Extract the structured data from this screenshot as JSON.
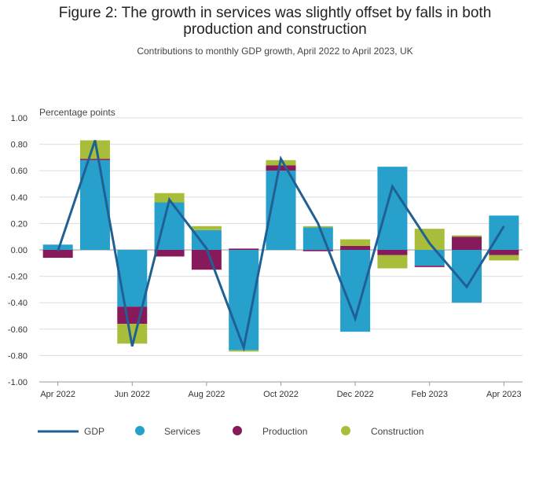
{
  "header": {
    "title_line1": "Figure 2: The growth in services was slightly offset by falls in both",
    "title_line2": "production and construction",
    "subtitle": "Contributions to monthly GDP growth, April 2022 to April 2023, UK"
  },
  "colors": {
    "services": "#27a0cc",
    "production": "#871a5b",
    "construction": "#a8bd3a",
    "gdp": "#206095",
    "grid": "#dddddd",
    "axis": "#999999"
  },
  "chart_data": {
    "type": "bar",
    "stacked": true,
    "title": "Figure 2: The growth in services was slightly offset by falls in both production and construction",
    "subtitle": "Contributions to monthly GDP growth, April 2022 to April 2023, UK",
    "ylabel": "Percentage points",
    "xlabel": "",
    "ylim": [
      -1.0,
      1.0
    ],
    "yticks": [
      1.0,
      0.8,
      0.6,
      0.4,
      0.2,
      0.0,
      -0.2,
      -0.4,
      -0.6,
      -0.8,
      -1.0
    ],
    "ytick_labels": [
      "1.00",
      "0.80",
      "0.60",
      "0.40",
      "0.20",
      "0.00",
      "-0.20",
      "-0.40",
      "-0.60",
      "-0.80",
      "-1.00"
    ],
    "categories": [
      "Apr 2022",
      "May 2022",
      "Jun 2022",
      "Jul 2022",
      "Aug 2022",
      "Sep 2022",
      "Oct 2022",
      "Nov 2022",
      "Dec 2022",
      "Jan 2023",
      "Feb 2023",
      "Mar 2023",
      "Apr 2023"
    ],
    "xtick_labels": [
      {
        "index": 0,
        "label": "Apr 2022"
      },
      {
        "index": 2,
        "label": "Jun 2022"
      },
      {
        "index": 4,
        "label": "Aug 2022"
      },
      {
        "index": 6,
        "label": "Oct 2022"
      },
      {
        "index": 8,
        "label": "Dec 2022"
      },
      {
        "index": 10,
        "label": "Feb 2023"
      },
      {
        "index": 12,
        "label": "Apr 2023"
      }
    ],
    "series": [
      {
        "name": "Services",
        "key": "services",
        "kind": "bar",
        "values": [
          0.04,
          0.68,
          -0.43,
          0.36,
          0.15,
          -0.76,
          0.6,
          0.17,
          -0.62,
          0.63,
          -0.12,
          -0.4,
          0.26
        ]
      },
      {
        "name": "Production",
        "key": "production",
        "kind": "bar",
        "values": [
          -0.06,
          0.01,
          -0.13,
          -0.05,
          -0.15,
          0.01,
          0.04,
          -0.01,
          0.03,
          -0.04,
          -0.01,
          0.1,
          -0.04
        ]
      },
      {
        "name": "Construction",
        "key": "construction",
        "kind": "bar",
        "values": [
          0.0,
          0.14,
          -0.15,
          0.07,
          0.03,
          -0.01,
          0.04,
          0.01,
          0.05,
          -0.1,
          0.16,
          0.01,
          -0.04
        ]
      },
      {
        "name": "GDP",
        "key": "gdp",
        "kind": "line",
        "values": [
          -0.01,
          0.83,
          -0.73,
          0.38,
          0.01,
          -0.74,
          0.69,
          0.2,
          -0.52,
          0.48,
          0.05,
          -0.28,
          0.18
        ]
      }
    ],
    "legend": {
      "position": "bottom-left",
      "items": [
        {
          "label": "GDP",
          "key": "gdp",
          "marker": "line"
        },
        {
          "label": "Services",
          "key": "services",
          "marker": "circle"
        },
        {
          "label": "Production",
          "key": "production",
          "marker": "circle"
        },
        {
          "label": "Construction",
          "key": "construction",
          "marker": "circle"
        }
      ]
    }
  }
}
